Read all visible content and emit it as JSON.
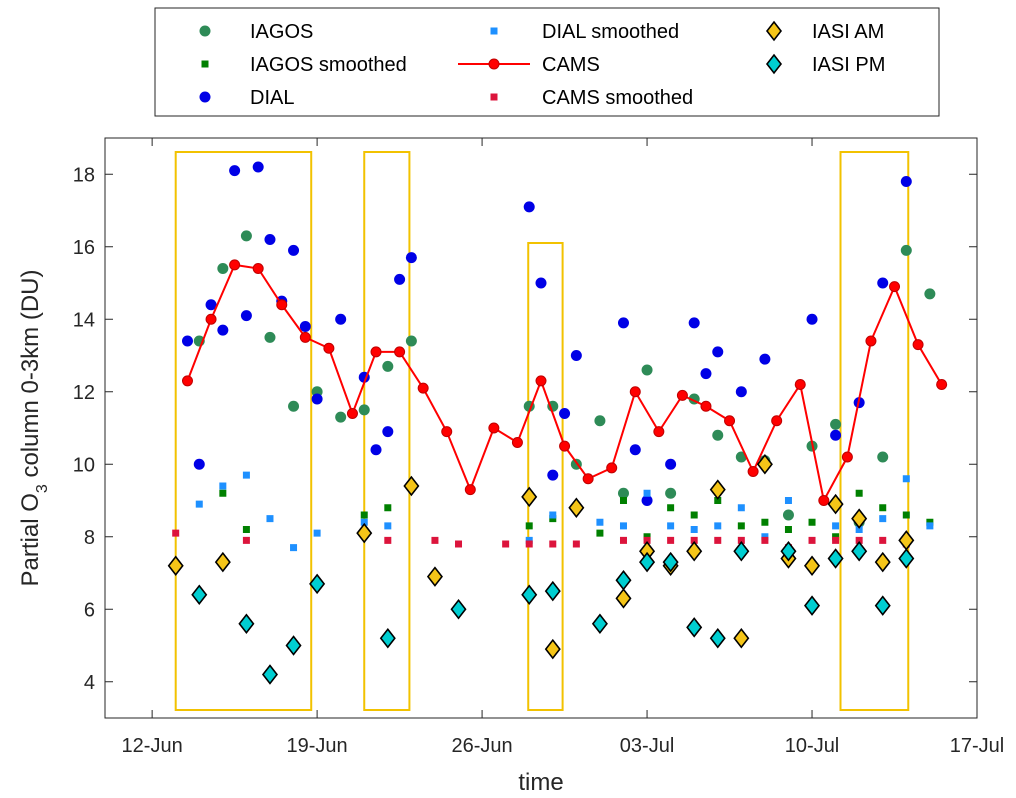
{
  "chart_data": {
    "type": "scatter",
    "xlabel": "time",
    "ylabel_pre": "Partial O",
    "ylabel_sub": "3",
    "ylabel_post": " column 0-3km (DU)",
    "x_unit": "days since 12-Jun",
    "xlim": [
      "2018-06-10",
      "2018-07-17"
    ],
    "ylim": [
      3,
      19
    ],
    "x_ticks": [
      {
        "date": "2018-06-12",
        "label": "12-Jun"
      },
      {
        "date": "2018-06-19",
        "label": "19-Jun"
      },
      {
        "date": "2018-06-26",
        "label": "26-Jun"
      },
      {
        "date": "2018-07-03",
        "label": "03-Jul"
      },
      {
        "date": "2018-07-10",
        "label": "10-Jul"
      },
      {
        "date": "2018-07-17",
        "label": "17-Jul"
      }
    ],
    "y_ticks": [
      4,
      6,
      8,
      10,
      12,
      14,
      16,
      18
    ],
    "grid": false,
    "legend_position": "top",
    "highlight_periods": [
      {
        "x0": "2018-06-13",
        "x1": "2018-06-18 18:00"
      },
      {
        "x0": "2018-06-21",
        "x1": "2018-06-22 22:00"
      },
      {
        "x0": "2018-06-27 23:00",
        "x1": "2018-06-29 10:00"
      },
      {
        "x0": "2018-07-11 05:00",
        "x1": "2018-07-14 02:00"
      }
    ],
    "series": [
      {
        "name": "IAGOS",
        "marker": "circle",
        "color": "#2e8b57",
        "x": [
          "2018-06-14",
          "2018-06-15",
          "2018-06-16",
          "2018-06-17",
          "2018-06-18",
          "2018-06-19",
          "2018-06-20",
          "2018-06-21",
          "2018-06-22",
          "2018-06-23",
          "2018-06-28",
          "2018-06-29",
          "2018-06-30",
          "2018-07-01",
          "2018-07-02",
          "2018-07-03",
          "2018-07-04",
          "2018-07-05",
          "2018-07-06",
          "2018-07-07",
          "2018-07-08",
          "2018-07-09",
          "2018-07-10",
          "2018-07-11",
          "2018-07-12",
          "2018-07-13",
          "2018-07-14",
          "2018-07-15"
        ],
        "y": [
          13.4,
          15.4,
          16.3,
          13.5,
          11.6,
          12.0,
          11.3,
          11.5,
          12.7,
          13.4,
          11.6,
          11.6,
          10.0,
          11.2,
          9.2,
          12.6,
          9.2,
          11.8,
          10.8,
          10.2,
          10.1,
          8.6,
          10.5,
          11.1,
          8.4,
          10.2,
          15.9,
          14.7
        ]
      },
      {
        "name": "IAGOS smoothed",
        "marker": "square-small",
        "color": "#008000",
        "x": [
          "2018-06-15",
          "2018-06-16",
          "2018-06-21",
          "2018-06-22",
          "2018-06-28",
          "2018-06-29",
          "2018-07-01",
          "2018-07-02",
          "2018-07-03",
          "2018-07-04",
          "2018-07-05",
          "2018-07-06",
          "2018-07-07",
          "2018-07-08",
          "2018-07-09",
          "2018-07-10",
          "2018-07-11",
          "2018-07-12",
          "2018-07-13",
          "2018-07-14",
          "2018-07-15"
        ],
        "y": [
          9.2,
          8.2,
          8.6,
          8.8,
          8.3,
          8.5,
          8.1,
          9.0,
          8.0,
          8.8,
          8.6,
          9.0,
          8.3,
          8.4,
          8.2,
          8.4,
          8.0,
          9.2,
          8.8,
          8.6,
          8.4
        ],
        "display": {
          "count": 21,
          "first": "2018-06-15",
          "last": "2018-07-15"
        }
      },
      {
        "name": "DIAL",
        "marker": "circle",
        "color": "#0000e6",
        "x": [
          "2018-06-13 12:00",
          "2018-06-14",
          "2018-06-14 12:00",
          "2018-06-15",
          "2018-06-15 12:00",
          "2018-06-16",
          "2018-06-16 12:00",
          "2018-06-17",
          "2018-06-17 12:00",
          "2018-06-18",
          "2018-06-18 12:00",
          "2018-06-19",
          "2018-06-20",
          "2018-06-21",
          "2018-06-21 12:00",
          "2018-06-22",
          "2018-06-22 12:00",
          "2018-06-23",
          "2018-06-28",
          "2018-06-28 12:00",
          "2018-06-29",
          "2018-06-29 12:00",
          "2018-06-30",
          "2018-07-02",
          "2018-07-02 12:00",
          "2018-07-03",
          "2018-07-04",
          "2018-07-05",
          "2018-07-05 12:00",
          "2018-07-06",
          "2018-07-07",
          "2018-07-08",
          "2018-07-10",
          "2018-07-11",
          "2018-07-12",
          "2018-07-13",
          "2018-07-14"
        ],
        "y": [
          13.4,
          10.0,
          14.4,
          13.7,
          18.1,
          14.1,
          18.2,
          16.2,
          14.5,
          15.9,
          13.8,
          11.8,
          14.0,
          12.4,
          10.4,
          10.9,
          15.1,
          15.7,
          17.1,
          15.0,
          9.7,
          11.4,
          13.0,
          13.9,
          10.4,
          9.0,
          10.0,
          13.9,
          12.5,
          13.1,
          12.0,
          12.9,
          14.0,
          10.8,
          11.7,
          15.0,
          17.8
        ],
        "display": {
          "count": 37,
          "first": "2018-06-13 12:00",
          "last": "2018-07-14"
        }
      },
      {
        "name": "DIAL smoothed",
        "marker": "square-small",
        "color": "#1e90ff",
        "x": [
          "2018-06-14",
          "2018-06-15",
          "2018-06-16",
          "2018-06-17",
          "2018-06-18",
          "2018-06-19",
          "2018-06-21",
          "2018-06-22",
          "2018-06-28",
          "2018-06-29",
          "2018-07-01",
          "2018-07-02",
          "2018-07-03",
          "2018-07-04",
          "2018-07-05",
          "2018-07-06",
          "2018-07-07",
          "2018-07-08",
          "2018-07-09",
          "2018-07-11",
          "2018-07-12",
          "2018-07-13",
          "2018-07-14",
          "2018-07-15"
        ],
        "y": [
          8.9,
          9.4,
          9.7,
          8.5,
          7.7,
          8.1,
          8.4,
          8.3,
          7.9,
          8.6,
          8.4,
          8.3,
          9.2,
          8.3,
          8.2,
          8.3,
          8.8,
          8.0,
          9.0,
          8.3,
          8.2,
          8.5,
          9.6,
          8.3
        ],
        "display": {
          "count": 24,
          "first": "2018-06-14",
          "last": "2018-07-15"
        }
      },
      {
        "name": "CAMS",
        "marker": "circle-line",
        "color": "#ff0000",
        "x": [
          "2018-06-13 12:00",
          "2018-06-14 12:00",
          "2018-06-15 12:00",
          "2018-06-16 12:00",
          "2018-06-17 12:00",
          "2018-06-18 12:00",
          "2018-06-19 12:00",
          "2018-06-20 12:00",
          "2018-06-21 12:00",
          "2018-06-22 12:00",
          "2018-06-23 12:00",
          "2018-06-24 12:00",
          "2018-06-25 12:00",
          "2018-06-26 12:00",
          "2018-06-27 12:00",
          "2018-06-28 12:00",
          "2018-06-29 12:00",
          "2018-06-30 12:00",
          "2018-07-01 12:00",
          "2018-07-02 12:00",
          "2018-07-03 12:00",
          "2018-07-04 12:00",
          "2018-07-05 12:00",
          "2018-07-06 12:00",
          "2018-07-07 12:00",
          "2018-07-08 12:00",
          "2018-07-09 12:00",
          "2018-07-10 12:00",
          "2018-07-11 12:00",
          "2018-07-12 12:00",
          "2018-07-13 12:00",
          "2018-07-14 12:00",
          "2018-07-15 12:00"
        ],
        "y": [
          12.3,
          14.0,
          15.5,
          15.4,
          14.4,
          13.5,
          13.2,
          11.4,
          13.1,
          13.1,
          12.1,
          10.9,
          9.3,
          11.0,
          10.6,
          12.3,
          10.5,
          9.6,
          9.9,
          12.0,
          10.9,
          11.9,
          11.6,
          11.2,
          9.8,
          11.2,
          12.2,
          9.0,
          10.2,
          13.4,
          14.9,
          13.3,
          12.2
        ],
        "display": {
          "count": 33,
          "first": "2018-06-13 12:00",
          "last": "2018-07-15 12:00"
        }
      },
      {
        "name": "CAMS smoothed",
        "marker": "square-small",
        "color": "#dc143c",
        "x": [
          "2018-06-13",
          "2018-06-16",
          "2018-06-22",
          "2018-06-24",
          "2018-06-25",
          "2018-06-27",
          "2018-06-28",
          "2018-06-29",
          "2018-06-30",
          "2018-07-02",
          "2018-07-03",
          "2018-07-04",
          "2018-07-05",
          "2018-07-06",
          "2018-07-07",
          "2018-07-08",
          "2018-07-09",
          "2018-07-10",
          "2018-07-11",
          "2018-07-12",
          "2018-07-13",
          "2018-07-14"
        ],
        "y": [
          8.1,
          7.9,
          7.9,
          7.9,
          7.8,
          7.8,
          7.8,
          7.8,
          7.8,
          7.9,
          7.9,
          7.9,
          7.9,
          7.9,
          7.9,
          7.9,
          7.7,
          7.9,
          7.9,
          7.9,
          7.9,
          7.8
        ],
        "display": {
          "count": 22,
          "first": "2018-06-13",
          "last": "2018-07-14"
        }
      },
      {
        "name": "IASI AM",
        "marker": "diamond",
        "color": "#f5c518",
        "x": [
          "2018-06-13",
          "2018-06-15",
          "2018-06-21",
          "2018-06-23",
          "2018-06-24",
          "2018-06-28",
          "2018-06-29",
          "2018-06-30",
          "2018-07-02",
          "2018-07-03",
          "2018-07-04",
          "2018-07-05",
          "2018-07-06",
          "2018-07-07",
          "2018-07-08",
          "2018-07-09",
          "2018-07-10",
          "2018-07-11",
          "2018-07-12",
          "2018-07-13",
          "2018-07-14"
        ],
        "y": [
          7.2,
          7.3,
          8.1,
          9.4,
          6.9,
          9.1,
          4.9,
          8.8,
          6.3,
          7.6,
          7.2,
          7.6,
          9.3,
          5.2,
          10.0,
          7.4,
          7.2,
          8.9,
          8.5,
          7.3,
          7.9
        ],
        "display": {
          "count": 21,
          "first": "2018-06-13",
          "last": "2018-07-14"
        }
      },
      {
        "name": "IASI PM",
        "marker": "diamond",
        "color": "#00ced1",
        "x": [
          "2018-06-14",
          "2018-06-16",
          "2018-06-17",
          "2018-06-18",
          "2018-06-19",
          "2018-06-22",
          "2018-06-25",
          "2018-06-28",
          "2018-06-29",
          "2018-07-01",
          "2018-07-02",
          "2018-07-03",
          "2018-07-04",
          "2018-07-05",
          "2018-07-06",
          "2018-07-07",
          "2018-07-09",
          "2018-07-10",
          "2018-07-11",
          "2018-07-12",
          "2018-07-13",
          "2018-07-14"
        ],
        "y": [
          6.4,
          5.6,
          4.2,
          5.0,
          6.7,
          5.2,
          6.0,
          6.4,
          6.5,
          5.6,
          6.8,
          7.3,
          7.3,
          5.5,
          5.2,
          7.6,
          7.6,
          6.1,
          7.4,
          7.6,
          6.1,
          7.4
        ],
        "display": {
          "count": 22,
          "first": "2018-06-14",
          "last": "2018-07-14"
        }
      }
    ]
  }
}
